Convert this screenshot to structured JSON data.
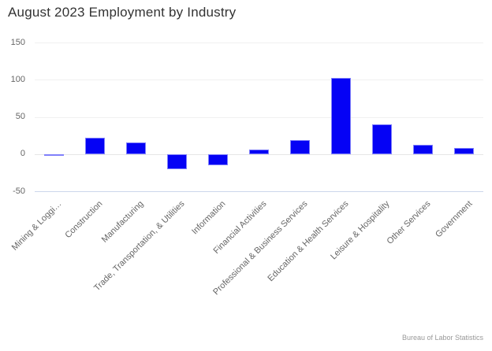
{
  "chart_data": {
    "type": "bar",
    "title": "August 2023 Employment by Industry",
    "categories": [
      "Mining & Loggi…",
      "Construction",
      "Manufacturing",
      "Trade, Transportation, & Utilities",
      "Information",
      "Financial Activities",
      "Professional & Business Services",
      "Education & Health Services",
      "Leisure & Hospitality",
      "Other Services",
      "Government"
    ],
    "values": [
      -2,
      22,
      16,
      -20,
      -15,
      6,
      19,
      102,
      40,
      13,
      8
    ],
    "xlabel": "",
    "ylabel": "",
    "ylim": [
      -50,
      150
    ],
    "yticks": [
      150,
      100,
      50,
      0,
      -50
    ],
    "grid": true,
    "legend": "none",
    "bar_color": "#0502f5",
    "bar_border_color": "#8080fa",
    "gridline_color": "#f0f0f0",
    "zero_line_color": "#e6e6e6",
    "axis_line_color": "#ccd6eb",
    "title_color": "#333333",
    "label_color": "#666666",
    "credits": "Bureau of Labor Statistics",
    "credits_color": "#999999"
  }
}
